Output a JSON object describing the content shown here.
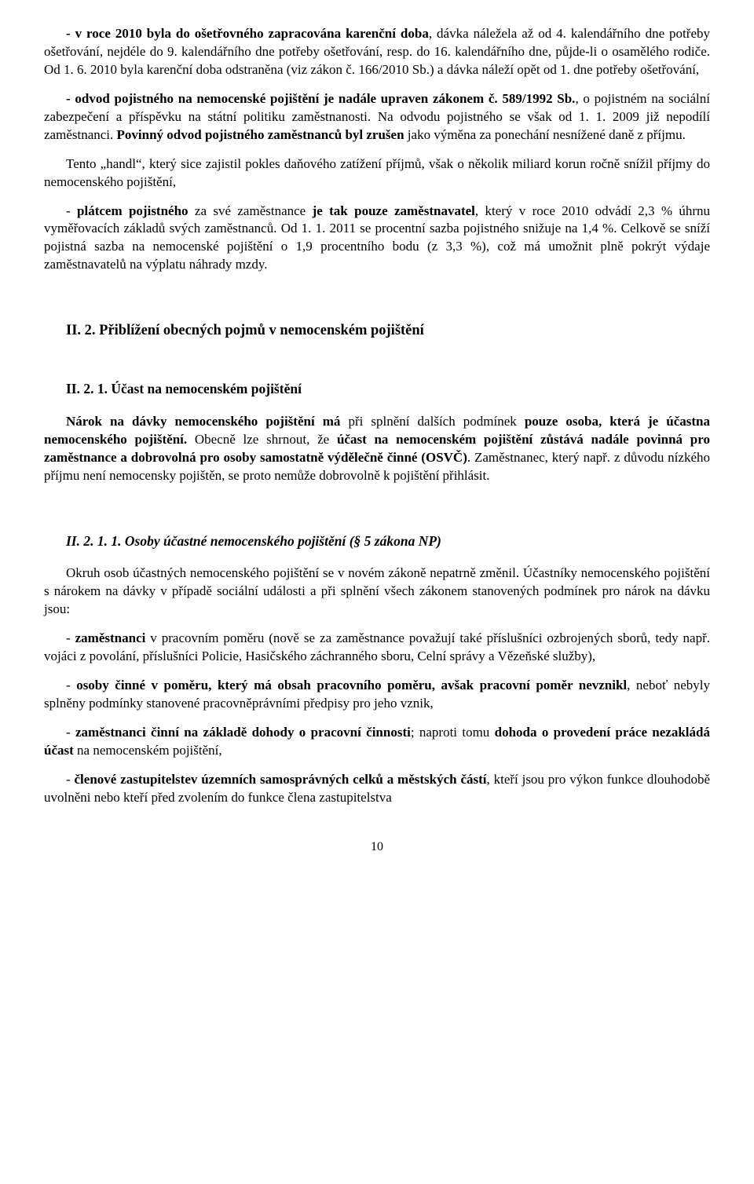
{
  "para1": {
    "seg1": "- v roce 2010 byla do ošetřovného zapracována karenční doba",
    "seg2": ", dávka náležela až od 4. kalendářního dne potřeby ošetřování, nejdéle do 9. kalendářního dne potřeby ošetřování, resp. do 16. kalendářního dne, půjde-li o osamělého rodiče. Od 1. 6. 2010 byla karenční doba odstraněna (viz zákon č. 166/2010 Sb.) a dávka náleží opět od 1. dne potřeby ošetřování,"
  },
  "para2": {
    "seg1": "- odvod pojistného na nemocenské pojištění je nadále upraven zákonem č. 589/1992 Sb.",
    "seg2": ", o pojistném na sociální zabezpečení a příspěvku na státní politiku zaměstnanosti. Na odvodu pojistného se však od 1. 1. 2009 již nepodílí zaměstnanci. ",
    "seg3": "Povinný odvod pojistného zaměstnanců byl zrušen",
    "seg4": " jako výměna za ponechání nesnížené daně z příjmu."
  },
  "para3": "Tento „handl“, který sice zajistil pokles daňového zatížení příjmů, však o několik miliard korun ročně snížil příjmy do nemocenského pojištění,",
  "para4": {
    "seg1": "- ",
    "seg2": "plátcem pojistného",
    "seg3": " za své zaměstnance ",
    "seg4": "je tak pouze zaměstnavatel",
    "seg5": ", který v roce 2010 odvádí 2,3 % úhrnu vyměřovacích základů svých zaměstnanců. Od 1. 1. 2011 se procentní sazba pojistného snižuje na 1,4 %. Celkově se sníží pojistná sazba na nemocenské pojištění o 1,9 procentního bodu (z 3,3 %), což má umožnit plně pokrýt výdaje zaměstnavatelů na výplatu náhrady mzdy."
  },
  "h2": "II. 2. Přiblížení obecných pojmů v nemocenském pojištění",
  "h3": "II. 2. 1. Účast na nemocenském pojištění",
  "para5": {
    "seg1": "Nárok na dávky nemocenského pojištění má ",
    "seg2": "při splnění dalších podmínek ",
    "seg3": "pouze osoba, která je účastna nemocenského pojištění.",
    "seg4": " Obecně lze shrnout, že ",
    "seg5": "účast na nemocenském pojištění zůstává nadále povinná pro zaměstnance a dobrovolná pro osoby samostatně výdělečně činné (OSVČ)",
    "seg6": ". Zaměstnanec, který např. z důvodu nízkého příjmu není nemocensky pojištěn, se proto nemůže dobrovolně k pojištění přihlásit."
  },
  "h4": "II. 2. 1. 1. Osoby účastné nemocenského pojištění (§ 5 zákona NP)",
  "para6": "Okruh osob účastných nemocenského pojištění se v novém zákoně nepatrně změnil. Účastníky nemocenského pojištění s nárokem na dávky v případě sociální události a při splnění všech zákonem stanovených podmínek pro nárok na dávku jsou:",
  "para7": {
    "seg1": "- ",
    "seg2": "zaměstnanci",
    "seg3": " v pracovním poměru (nově se za zaměstnance považují také příslušníci ozbrojených sborů, tedy např. vojáci z povolání, příslušníci Policie, Hasičského záchranného sboru, Celní správy a Vězeňské služby),"
  },
  "para8": {
    "seg1": "- ",
    "seg2": "osoby činné v poměru, který má obsah pracovního poměru, avšak pracovní poměr nevznikl",
    "seg3": ", neboť nebyly splněny podmínky stanovené pracovněprávními předpisy pro jeho vznik,"
  },
  "para9": {
    "seg1": "- ",
    "seg2": "zaměstnanci činní na základě dohody o pracovní činnosti",
    "seg3": "; naproti tomu ",
    "seg4": "dohoda o provedení práce nezakládá účast",
    "seg5": " na nemocenském pojištění,"
  },
  "para10": {
    "seg1": "- ",
    "seg2": "členové zastupitelstev územních samosprávných celků a městských částí",
    "seg3": ", kteří jsou pro výkon funkce dlouhodobě uvolněni nebo kteří před zvolením do funkce člena zastupitelstva"
  },
  "pagenum": "10"
}
